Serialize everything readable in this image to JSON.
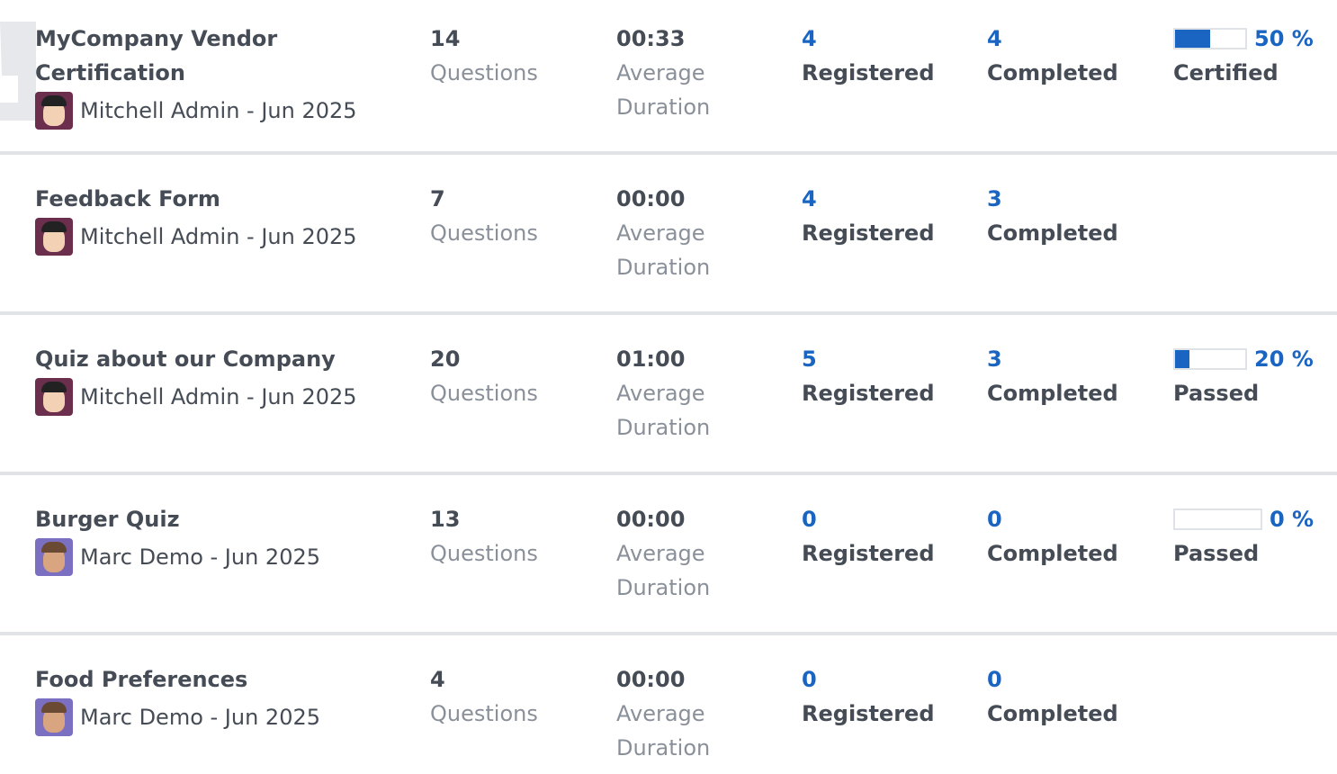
{
  "colors": {
    "accent": "#1a64c2",
    "text": "#464c55",
    "muted": "#8a9099"
  },
  "labels": {
    "questions": "Questions",
    "average": "Average",
    "duration": "Duration",
    "registered": "Registered",
    "completed": "Completed"
  },
  "surveys": [
    {
      "title": "MyCompany Vendor Certification",
      "author": "Mitchell Admin - Jun 2025",
      "avatar": "mitchell",
      "questions": "14",
      "duration": "00:33",
      "registered": "4",
      "completed": "4",
      "rate": 50,
      "rate_label": "50 %",
      "result_label": "Certified",
      "icon": "trophy-icon"
    },
    {
      "title": "Feedback Form",
      "author": "Mitchell Admin - Jun 2025",
      "avatar": "mitchell",
      "questions": "7",
      "duration": "00:00",
      "registered": "4",
      "completed": "3"
    },
    {
      "title": "Quiz about our Company",
      "author": "Mitchell Admin - Jun 2025",
      "avatar": "mitchell",
      "questions": "20",
      "duration": "01:00",
      "registered": "5",
      "completed": "3",
      "rate": 20,
      "rate_label": "20 %",
      "result_label": "Passed"
    },
    {
      "title": "Burger Quiz",
      "author": "Marc Demo - Jun 2025",
      "avatar": "marc",
      "questions": "13",
      "duration": "00:00",
      "registered": "0",
      "completed": "0",
      "rate": 0,
      "rate_label": "0 %",
      "result_label": "Passed"
    },
    {
      "title": "Food Preferences",
      "author": "Marc Demo - Jun 2025",
      "avatar": "marc",
      "questions": "4",
      "duration": "00:00",
      "registered": "0",
      "completed": "0"
    }
  ]
}
